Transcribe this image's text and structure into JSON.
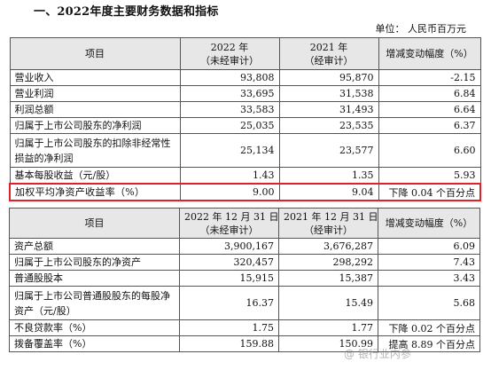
{
  "heading": "一、2022年度主要财务数据和指标",
  "unit": "单位： 人民币百万元",
  "table1": {
    "header": {
      "item": "项目",
      "col1_year": "2022 年",
      "col1_note": "（未经审计）",
      "col2_year": "2021 年",
      "col2_note": "（经审计）",
      "change": "增减变动幅度（%）"
    },
    "rows": [
      {
        "label": "营业收入",
        "v1": "93,808",
        "v2": "95,870",
        "chg": "-2.15"
      },
      {
        "label": "营业利润",
        "v1": "33,695",
        "v2": "31,538",
        "chg": "6.84"
      },
      {
        "label": "利润总额",
        "v1": "33,583",
        "v2": "31,493",
        "chg": "6.64"
      },
      {
        "label": "归属于上市公司股东的净利润",
        "v1": "25,035",
        "v2": "23,535",
        "chg": "6.37"
      },
      {
        "label": "归属于上市公司股东的扣除非经常性损益的净利润",
        "v1": "25,134",
        "v2": "23,577",
        "chg": "6.60"
      },
      {
        "label": "基本每股收益（元/股）",
        "v1": "1.43",
        "v2": "1.35",
        "chg": "5.93"
      },
      {
        "label": "加权平均净资产收益率（%）",
        "v1": "9.00",
        "v2": "9.04",
        "chg": "下降 0.04 个百分点"
      }
    ]
  },
  "table2": {
    "header": {
      "item": "项目",
      "col1_date": "2022 年 12 月 31 日",
      "col1_note": "（未经审计）",
      "col2_date": "2021 年 12 月 31 日",
      "col2_note": "（经审计）",
      "change": "增减变动幅度（%）"
    },
    "rows": [
      {
        "label": "资产总额",
        "v1": "3,900,167",
        "v2": "3,676,287",
        "chg": "6.09"
      },
      {
        "label": "归属于上市公司股东的净资产",
        "v1": "320,457",
        "v2": "298,292",
        "chg": "7.43"
      },
      {
        "label": "普通股股本",
        "v1": "15,915",
        "v2": "15,387",
        "chg": "3.43"
      },
      {
        "label": "归属于上市公司普通股股东的每股净资产（元/股）",
        "v1": "16.37",
        "v2": "15.49",
        "chg": "5.68"
      },
      {
        "label": "不良贷款率（%）",
        "v1": "1.75",
        "v2": "1.77",
        "chg": "下降 0.02 个百分点"
      },
      {
        "label": "拨备覆盖率（%）",
        "v1": "159.88",
        "v2": "150.99",
        "chg": "提高 8.89 个百分点"
      }
    ]
  },
  "watermark": "@ 银行业内参"
}
